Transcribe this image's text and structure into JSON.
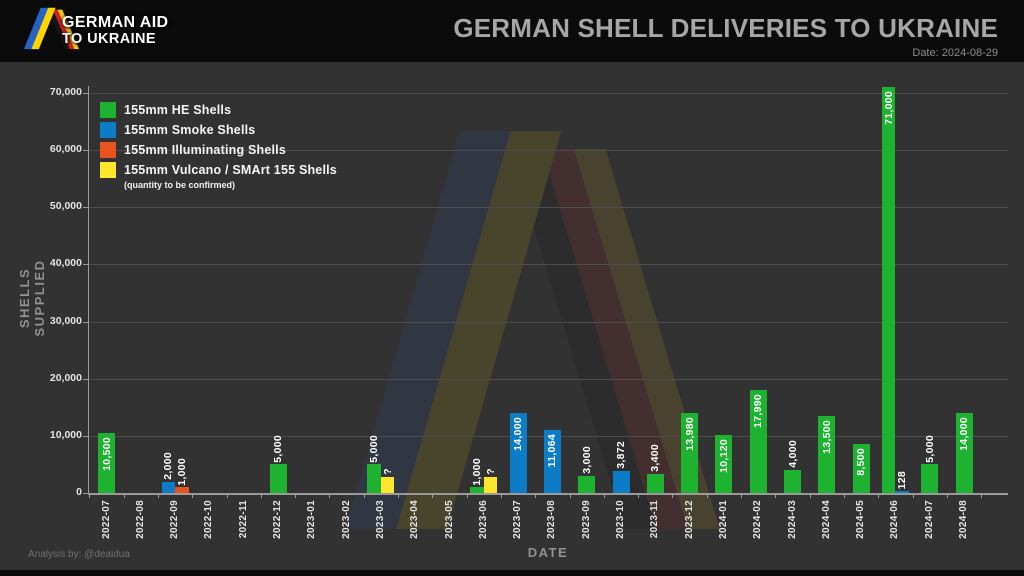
{
  "header": {
    "logo_line1": "GERMAN AID",
    "logo_line2": "TO UKRAINE",
    "title": "GERMAN SHELL DELIVERIES TO UKRAINE",
    "date": "Date: 2024-08-29"
  },
  "footer": {
    "credit": "Analysis by: @deaidua"
  },
  "colors": {
    "he": "#1db22f",
    "smoke": "#0d7cc6",
    "illuminating": "#e85320",
    "vulcano": "#fde62c",
    "background": "#323232",
    "band": "#0b0b0b",
    "grid": "#4d4d4d",
    "title": "#a6a6a6"
  },
  "legend": [
    {
      "key": "he",
      "label": "155mm HE Shells",
      "note": ""
    },
    {
      "key": "smoke",
      "label": "155mm Smoke Shells",
      "note": ""
    },
    {
      "key": "illuminating",
      "label": "155mm Illuminating Shells",
      "note": ""
    },
    {
      "key": "vulcano",
      "label": "155mm Vulcano / SMArt 155 Shells",
      "note": "(quantity to be confirmed)"
    }
  ],
  "chart_data": {
    "type": "bar",
    "title": "GERMAN SHELL DELIVERIES TO UKRAINE",
    "xlabel": "DATE",
    "ylabel": "SHELLS SUPPLIED",
    "ylim": [
      0,
      70000
    ],
    "ytick_step": 10000,
    "ytick_labels": [
      "0",
      "10,000",
      "20,000",
      "30,000",
      "40,000",
      "50,000",
      "60,000",
      "70,000"
    ],
    "grid": true,
    "legend_position": "upper-left",
    "categories": [
      "2022-07",
      "2022-08",
      "2022-09",
      "2022-10",
      "2022-11",
      "2022-12",
      "2023-01",
      "2023-02",
      "2023-03",
      "2023-04",
      "2023-05",
      "2023-06",
      "2023-07",
      "2023-08",
      "2023-09",
      "2023-10",
      "2023-11",
      "2023-12",
      "2024-01",
      "2024-02",
      "2024-03",
      "2024-04",
      "2024-05",
      "2024-06",
      "2024-07",
      "2024-08"
    ],
    "bars": [
      {
        "month": "2022-07",
        "entries": [
          {
            "series": "he",
            "value": 10500,
            "label": "10,500"
          }
        ]
      },
      {
        "month": "2022-08",
        "entries": []
      },
      {
        "month": "2022-09",
        "entries": [
          {
            "series": "smoke",
            "value": 2000,
            "label": "2,000"
          },
          {
            "series": "illuminating",
            "value": 1000,
            "label": "1,000"
          }
        ]
      },
      {
        "month": "2022-10",
        "entries": []
      },
      {
        "month": "2022-11",
        "entries": []
      },
      {
        "month": "2022-12",
        "entries": [
          {
            "series": "he",
            "value": 5000,
            "label": "5,000"
          }
        ]
      },
      {
        "month": "2023-01",
        "entries": []
      },
      {
        "month": "2023-02",
        "entries": []
      },
      {
        "month": "2023-03",
        "entries": [
          {
            "series": "he",
            "value": 5000,
            "label": "5,000"
          },
          {
            "series": "vulcano",
            "value": null,
            "display_height": 2800,
            "label": "?"
          }
        ]
      },
      {
        "month": "2023-04",
        "entries": []
      },
      {
        "month": "2023-05",
        "entries": []
      },
      {
        "month": "2023-06",
        "entries": [
          {
            "series": "he",
            "value": 1000,
            "label": "1,000"
          },
          {
            "series": "vulcano",
            "value": null,
            "display_height": 2800,
            "label": "?"
          }
        ]
      },
      {
        "month": "2023-07",
        "entries": [
          {
            "series": "smoke",
            "value": 14000,
            "label": "14,000"
          }
        ]
      },
      {
        "month": "2023-08",
        "entries": [
          {
            "series": "smoke",
            "value": 11064,
            "label": "11,064"
          }
        ]
      },
      {
        "month": "2023-09",
        "entries": [
          {
            "series": "he",
            "value": 3000,
            "label": "3,000"
          }
        ]
      },
      {
        "month": "2023-10",
        "entries": [
          {
            "series": "smoke",
            "value": 3872,
            "label": "3,872"
          }
        ]
      },
      {
        "month": "2023-11",
        "entries": [
          {
            "series": "he",
            "value": 3400,
            "label": "3,400"
          }
        ]
      },
      {
        "month": "2023-12",
        "entries": [
          {
            "series": "he",
            "value": 13980,
            "label": "13,980"
          }
        ]
      },
      {
        "month": "2024-01",
        "entries": [
          {
            "series": "he",
            "value": 10120,
            "label": "10,120"
          }
        ]
      },
      {
        "month": "2024-02",
        "entries": [
          {
            "series": "he",
            "value": 17990,
            "label": "17,990"
          }
        ]
      },
      {
        "month": "2024-03",
        "entries": [
          {
            "series": "he",
            "value": 4000,
            "label": "4,000"
          }
        ]
      },
      {
        "month": "2024-04",
        "entries": [
          {
            "series": "he",
            "value": 13500,
            "label": "13,500"
          }
        ]
      },
      {
        "month": "2024-05",
        "entries": [
          {
            "series": "he",
            "value": 8500,
            "label": "8,500"
          }
        ]
      },
      {
        "month": "2024-06",
        "entries": [
          {
            "series": "he",
            "value": 71000,
            "label": "71,000"
          },
          {
            "series": "smoke",
            "value": 128,
            "label": "128"
          }
        ]
      },
      {
        "month": "2024-07",
        "entries": [
          {
            "series": "he",
            "value": 5000,
            "label": "5,000"
          }
        ]
      },
      {
        "month": "2024-08",
        "entries": [
          {
            "series": "he",
            "value": 14000,
            "label": "14,000"
          }
        ]
      }
    ]
  }
}
